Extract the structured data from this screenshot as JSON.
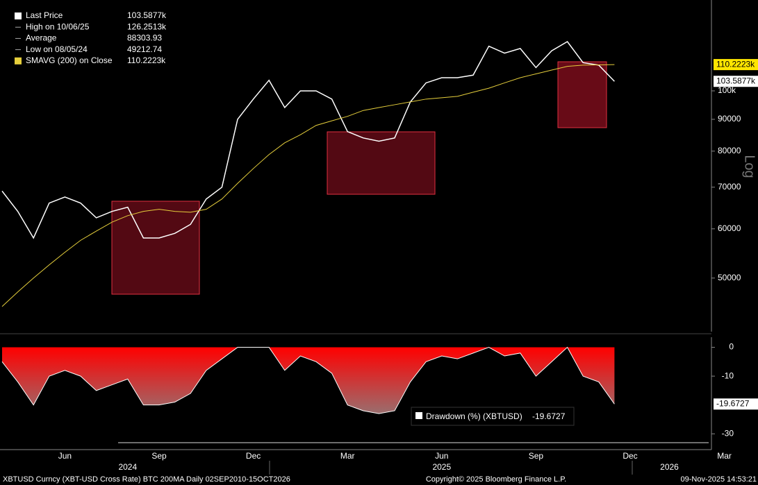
{
  "chart_data": [
    {
      "type": "line",
      "log_scale": true,
      "axis_label": "Log",
      "ylim": [
        41000,
        140000
      ],
      "yticks": [
        50000,
        60000,
        70000,
        80000,
        90000,
        {
          "value": 100000,
          "label": "100k"
        }
      ],
      "legend": [
        {
          "label": "Last Price",
          "value": "103.5877k"
        },
        {
          "label": "High on 10/06/25",
          "value": "126.2513k"
        },
        {
          "label": "Average",
          "value": "88303.93"
        },
        {
          "label": "Low on 08/05/24",
          "value": "49212.74"
        },
        {
          "label": "SMAVG (200)  on Close",
          "value": "110.2223k"
        }
      ],
      "series": [
        {
          "name": "Last Price",
          "color": "#ffffff",
          "values": [
            69000,
            64000,
            58000,
            66000,
            67500,
            66000,
            62500,
            64000,
            65000,
            58000,
            58000,
            59000,
            61000,
            67000,
            70000,
            90000,
            97000,
            104000,
            94000,
            100000,
            100000,
            97000,
            86000,
            84000,
            83000,
            84000,
            96000,
            103000,
            105000,
            105000,
            106000,
            118000,
            115000,
            117000,
            109000,
            116000,
            120000,
            111000,
            110000,
            103587.7,
            null,
            null,
            null,
            null,
            null,
            null,
            null,
            null,
            null
          ],
          "value_labels": [
            null,
            null,
            null,
            null,
            null,
            null,
            null,
            null,
            null,
            null,
            null,
            null,
            null,
            null,
            null,
            null,
            null,
            null,
            null,
            null,
            null,
            null,
            null,
            null,
            null,
            null,
            null,
            null,
            null,
            null,
            null,
            null,
            null,
            null,
            null,
            null,
            null,
            null,
            null,
            "103.5877k",
            null,
            null,
            null,
            null,
            null,
            null,
            null,
            null,
            null
          ]
        },
        {
          "name": "SMAVG (200)  on Close",
          "color": "#e6cf3c",
          "values": [
            45000,
            47500,
            50000,
            52500,
            55000,
            57500,
            59500,
            61500,
            63000,
            64000,
            64500,
            64000,
            63800,
            64500,
            67000,
            71000,
            75000,
            79000,
            82500,
            85000,
            88000,
            89500,
            91000,
            93000,
            94000,
            95000,
            96000,
            97000,
            97500,
            98000,
            99500,
            101000,
            103000,
            105000,
            106500,
            108000,
            109500,
            110000,
            110100,
            110222.3,
            null,
            null,
            null,
            null,
            null,
            null,
            null,
            null,
            null
          ],
          "value_labels": [
            null,
            null,
            null,
            null,
            null,
            null,
            null,
            null,
            null,
            null,
            null,
            null,
            null,
            null,
            null,
            null,
            null,
            null,
            null,
            null,
            null,
            null,
            null,
            null,
            null,
            null,
            null,
            null,
            null,
            null,
            null,
            null,
            null,
            null,
            null,
            null,
            null,
            null,
            null,
            "110.2223k",
            null,
            null,
            null,
            null,
            null,
            null,
            null,
            null,
            null
          ]
        }
      ]
    },
    {
      "type": "area",
      "ylim": [
        -35,
        3.5
      ],
      "yticks": [
        0,
        -10,
        -30
      ],
      "categories": [
        null,
        null,
        null,
        null,
        "Jun",
        null,
        null,
        null,
        null,
        null,
        "Sep",
        null,
        null,
        null,
        null,
        null,
        "Dec",
        null,
        null,
        null,
        null,
        null,
        "Mar",
        null,
        null,
        null,
        null,
        null,
        "Jun",
        null,
        null,
        null,
        null,
        null,
        "Sep",
        null,
        null,
        null,
        null,
        null,
        "Dec",
        null,
        null,
        null,
        null,
        null,
        "Mar",
        null,
        null
      ],
      "years": [
        "2024",
        "2025",
        "2026"
      ],
      "series": [
        {
          "name": "Drawdown (%) (XBTUSD)",
          "color": "#ff0000",
          "values": [
            -5,
            -12,
            -20,
            -10,
            -8,
            -10,
            -15,
            -13,
            -11,
            -20,
            -20,
            -19,
            -16,
            -8,
            -4,
            0,
            0,
            0,
            -8,
            -3,
            -5,
            -9,
            -20,
            -22,
            -23,
            -22,
            -12,
            -5,
            -3,
            -4,
            -2,
            0,
            -3,
            -2,
            -10,
            -5,
            0,
            -10,
            -12,
            -19.6727,
            null,
            null,
            null,
            null,
            null,
            null,
            null,
            null,
            null
          ],
          "value_labels": [
            null,
            null,
            null,
            null,
            null,
            null,
            null,
            null,
            null,
            null,
            null,
            null,
            null,
            null,
            null,
            null,
            null,
            null,
            null,
            null,
            null,
            null,
            null,
            null,
            null,
            null,
            null,
            null,
            null,
            null,
            null,
            null,
            null,
            null,
            null,
            null,
            null,
            null,
            null,
            "-19.6727",
            null,
            null,
            null,
            null,
            null,
            null,
            null,
            null,
            null
          ]
        }
      ]
    }
  ],
  "footer": {
    "left": "XBTUSD Curncy (XBT-USD Cross Rate) BTC 200MA Daily 02SEP2010-15OCT2026",
    "center": "Copyright© 2025 Bloomberg Finance L.P.",
    "right": "09-Nov-2025 14:53:21"
  }
}
